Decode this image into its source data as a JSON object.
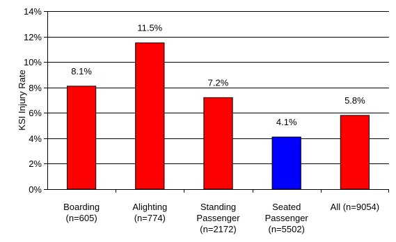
{
  "chart_data": {
    "type": "bar",
    "title": "",
    "xlabel": "",
    "ylabel": "KSI Injury Rate",
    "ylim": [
      0,
      0.14
    ],
    "yticks": [
      0,
      0.02,
      0.04,
      0.06,
      0.08,
      0.1,
      0.12,
      0.14
    ],
    "ytick_labels": [
      "0%",
      "2%",
      "4%",
      "6%",
      "8%",
      "10%",
      "12%",
      "14%"
    ],
    "grid": true,
    "legend": "none",
    "categories": [
      [
        "Boarding",
        "(n=605)"
      ],
      [
        "Alighting",
        "(n=774)"
      ],
      [
        "Standing",
        "Passenger",
        "(n=2172)"
      ],
      [
        "Seated",
        "Passenger",
        "(n=5502)"
      ],
      [
        "All (n=9054)"
      ]
    ],
    "values": [
      0.081,
      0.115,
      0.072,
      0.041,
      0.058
    ],
    "data_labels": [
      "8.1%",
      "11.5%",
      "7.2%",
      "4.1%",
      "5.8%"
    ],
    "colors": [
      "#ff0000",
      "#ff0000",
      "#ff0000",
      "#0000ff",
      "#ff0000"
    ]
  }
}
